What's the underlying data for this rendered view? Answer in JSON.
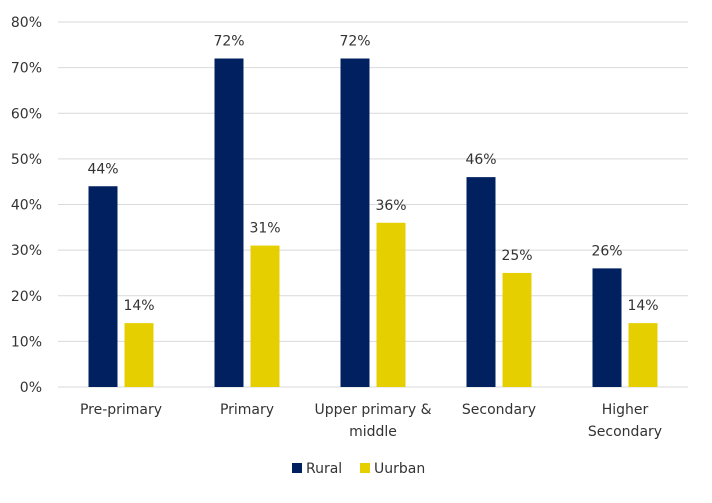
{
  "chart_data": {
    "type": "bar",
    "title": "",
    "xlabel": "",
    "ylabel": "",
    "categories": [
      [
        "Pre-primary"
      ],
      [
        "Primary"
      ],
      [
        "Upper primary &",
        "middle"
      ],
      [
        "Secondary"
      ],
      [
        "Higher",
        "Secondary"
      ]
    ],
    "series": [
      {
        "name": "Rural",
        "color": "#002060",
        "values": [
          44,
          72,
          72,
          46,
          26
        ]
      },
      {
        "name": "Uurban",
        "color": "#E6CF00",
        "values": [
          14,
          31,
          36,
          25,
          14
        ]
      }
    ],
    "ylim": [
      0,
      80
    ],
    "yticks": [
      0,
      10,
      20,
      30,
      40,
      50,
      60,
      70,
      80
    ],
    "value_format": "percent",
    "grid": true,
    "legend_position": "bottom"
  }
}
